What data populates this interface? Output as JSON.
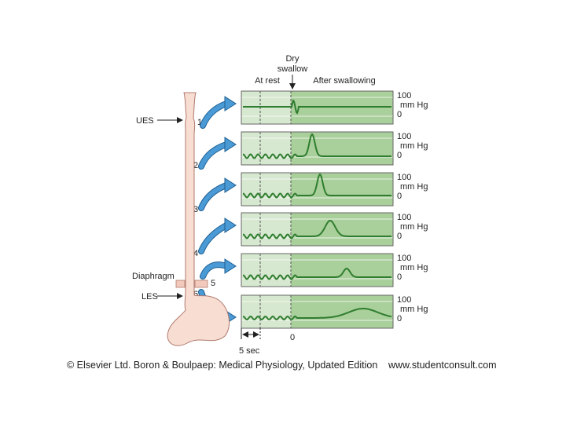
{
  "header": {
    "event": [
      "Dry",
      "swallow"
    ],
    "phases": [
      "At rest",
      "After swallowing"
    ]
  },
  "panels": [
    {
      "number": "1",
      "scale": [
        "100",
        "mm Hg",
        "0"
      ]
    },
    {
      "number": "2",
      "scale": [
        "100",
        "mm Hg",
        "0"
      ]
    },
    {
      "number": "3",
      "scale": [
        "100",
        "mm Hg",
        "0"
      ]
    },
    {
      "number": "4",
      "scale": [
        "100",
        "mm Hg",
        "0"
      ]
    },
    {
      "number": "5",
      "scale": [
        "100",
        "mm Hg",
        "0"
      ]
    },
    {
      "number": "6",
      "scale": [
        "100",
        "mm Hg",
        "0"
      ]
    }
  ],
  "anatomy": {
    "ues": "UES",
    "diaphragm": "Diaphragm",
    "les": "LES"
  },
  "time_axis": {
    "interval": "5 sec",
    "origin": "0"
  },
  "footer": {
    "credit": "© Elsevier Ltd. Boron & Boulpaep: Medical Physiology, Updated Edition",
    "url": "www.studentconsult.com"
  }
}
